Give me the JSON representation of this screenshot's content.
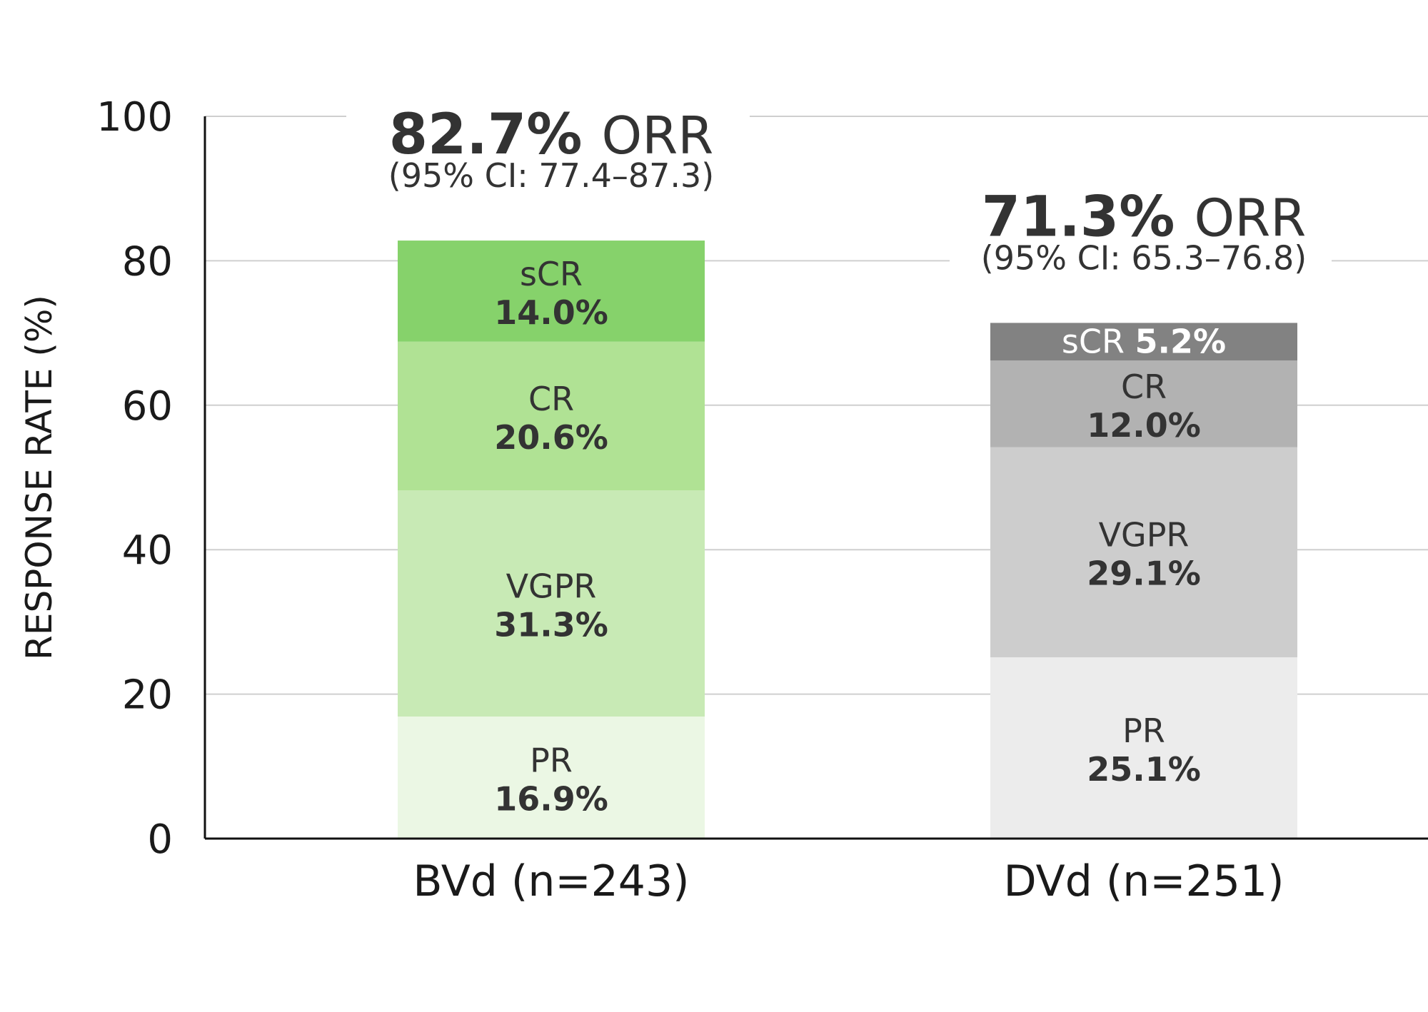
{
  "chart_data": {
    "type": "bar",
    "stacked": true,
    "ylabel": "RESPONSE RATE (%)",
    "ylim": [
      0,
      100
    ],
    "yticks": [
      "0",
      "20",
      "40",
      "60",
      "80",
      "100"
    ],
    "grid": true,
    "groups": [
      {
        "category": "BVd (n=243)",
        "orr_value": "82.7%",
        "orr_word": "ORR",
        "ci": "(95% CI: 77.4–87.3)",
        "segments": [
          {
            "name": "PR",
            "value": 16.9,
            "label": "16.9%",
            "color": "#ebf7e4"
          },
          {
            "name": "VGPR",
            "value": 31.3,
            "label": "31.3%",
            "color": "#c8eab5"
          },
          {
            "name": "CR",
            "value": 20.6,
            "label": "20.6%",
            "color": "#b0e294"
          },
          {
            "name": "sCR",
            "value": 14.0,
            "label": "14.0%",
            "color": "#86d26b"
          }
        ]
      },
      {
        "category": "DVd (n=251)",
        "orr_value": "71.3%",
        "orr_word": "ORR",
        "ci": "(95% CI: 65.3–76.8)",
        "segments": [
          {
            "name": "PR",
            "value": 25.1,
            "label": "25.1%",
            "color": "#ececec"
          },
          {
            "name": "VGPR",
            "value": 29.1,
            "label": "29.1%",
            "color": "#cdcdcd"
          },
          {
            "name": "CR",
            "value": 12.0,
            "label": "12.0%",
            "color": "#b2b2b2"
          },
          {
            "name": "sCR",
            "value": 5.2,
            "label": "5.2%",
            "color": "#828282"
          }
        ]
      }
    ]
  }
}
